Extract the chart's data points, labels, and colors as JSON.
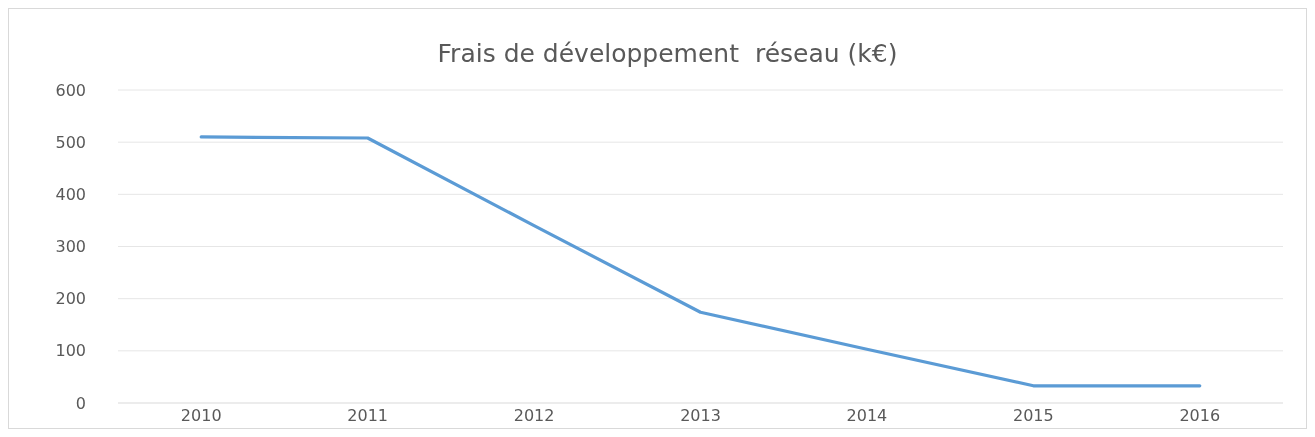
{
  "chart_data": {
    "type": "line",
    "title": "Frais de développement  réseau (k€)",
    "categories": [
      "2010",
      "2011",
      "2012",
      "2013",
      "2014",
      "2015",
      "2016"
    ],
    "series": [
      {
        "color": "#5b9bd5",
        "values": [
          510,
          508,
          340,
          174,
          103,
          33,
          33
        ]
      }
    ],
    "ylim": [
      0,
      600
    ],
    "yticks": [
      0,
      100,
      200,
      300,
      400,
      500,
      600
    ],
    "grid": "y",
    "marker": "none",
    "line_style": "solid"
  }
}
